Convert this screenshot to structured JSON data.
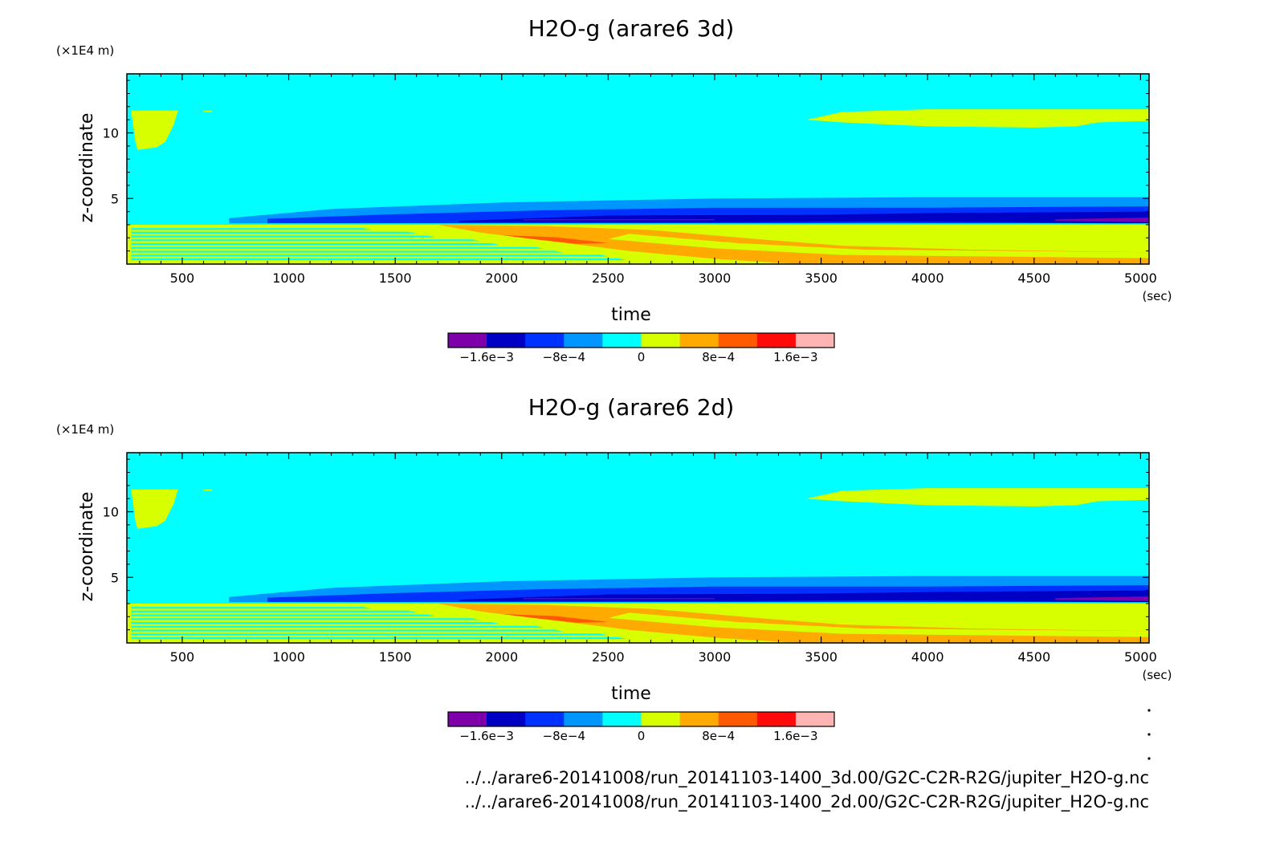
{
  "palette": {
    "c0": "#7d00aa",
    "c1": "#0000c4",
    "c2": "#0032ff",
    "c3": "#0096ff",
    "c4": "#00ffff",
    "c5": "#d7ff00",
    "c6": "#ffaa00",
    "c7": "#ff5a00",
    "c8": "#ff0a0a",
    "c9": "#ffb4b4"
  },
  "chart_data": [
    {
      "type": "heatmap",
      "title": "H2O-g (arare6 3d)",
      "xlabel": "time",
      "ylabel": "z-coordinate",
      "x_unit": "(sec)",
      "y_unit": "(×1E4 m)",
      "xlim": [
        240,
        5040
      ],
      "ylim": [
        0,
        14.5
      ],
      "x_ticks": [
        500,
        1000,
        1500,
        2000,
        2500,
        3000,
        3500,
        4000,
        4500,
        5000
      ],
      "x_tick_labels": [
        "500",
        "1000",
        "1500",
        "2000",
        "2500",
        "3000",
        "3500",
        "4000",
        "4500",
        "5000"
      ],
      "y_ticks": [
        5,
        10
      ],
      "y_tick_labels": [
        "5",
        "10"
      ],
      "colorbar": {
        "levels": [
          -0.002,
          -0.0016,
          -0.0012,
          -0.0008,
          -0.0004,
          0,
          0.0004,
          0.0008,
          0.0012,
          0.0016,
          0.002
        ],
        "tick_values": [
          -0.0016,
          -0.0008,
          0,
          0.0008,
          0.0016
        ],
        "tick_labels": [
          "−1.6e−3",
          "−8e−4",
          "0",
          "8e−4",
          "1.6e−3"
        ]
      },
      "regions": [
        {
          "value_level": "0 to 4e-4",
          "t_range": [
            240,
            480
          ],
          "z_range": [
            8.6,
            11.7
          ],
          "description": "upper-left plume"
        },
        {
          "value_level": "0 to 4e-4",
          "t_range": [
            3430,
            5040
          ],
          "z_range": [
            10.4,
            11.8
          ]
        },
        {
          "value_level": "-4e-4 to 0",
          "t_range": [
            720,
            5040
          ],
          "z_range": [
            3.6,
            5.1
          ]
        },
        {
          "value_level": "-1.2e-3 to -8e-4",
          "t_range": [
            1800,
            5040
          ],
          "z_range": [
            3.1,
            4.2
          ]
        },
        {
          "value_level": "-2e-3 to -1.6e-3",
          "t_range": [
            4600,
            5040
          ],
          "z_range": [
            3.2,
            3.5
          ]
        },
        {
          "value_level": "0 to 4e-4",
          "t_range": [
            240,
            5040
          ],
          "z_range": [
            0,
            3.0
          ]
        },
        {
          "value_level": "4e-4 to 8e-4",
          "t_range": [
            1700,
            5040
          ],
          "z_range": [
            0,
            3.0
          ]
        },
        {
          "value_level": "8e-4 to 1.2e-3",
          "t_range": [
            2000,
            2400
          ],
          "z_range": [
            1.6,
            2.4
          ]
        }
      ]
    },
    {
      "type": "heatmap",
      "title": "H2O-g (arare6 2d)",
      "xlabel": "time",
      "ylabel": "z-coordinate",
      "x_unit": "(sec)",
      "y_unit": "(×1E4 m)",
      "xlim": [
        240,
        5040
      ],
      "ylim": [
        0,
        14.5
      ],
      "x_ticks": [
        500,
        1000,
        1500,
        2000,
        2500,
        3000,
        3500,
        4000,
        4500,
        5000
      ],
      "x_tick_labels": [
        "500",
        "1000",
        "1500",
        "2000",
        "2500",
        "3000",
        "3500",
        "4000",
        "4500",
        "5000"
      ],
      "y_ticks": [
        5,
        10
      ],
      "y_tick_labels": [
        "5",
        "10"
      ],
      "colorbar": {
        "levels": [
          -0.002,
          -0.0016,
          -0.0012,
          -0.0008,
          -0.0004,
          0,
          0.0004,
          0.0008,
          0.0012,
          0.0016,
          0.002
        ],
        "tick_values": [
          -0.0016,
          -0.0008,
          0,
          0.0008,
          0.0016
        ],
        "tick_labels": [
          "−1.6e−3",
          "−8e−4",
          "0",
          "8e−4",
          "1.6e−3"
        ]
      },
      "regions": [
        {
          "value_level": "0 to 4e-4",
          "t_range": [
            240,
            480
          ],
          "z_range": [
            8.6,
            11.7
          ]
        },
        {
          "value_level": "0 to 4e-4",
          "t_range": [
            3430,
            5040
          ],
          "z_range": [
            10.4,
            11.8
          ]
        },
        {
          "value_level": "-4e-4 to 0",
          "t_range": [
            720,
            5040
          ],
          "z_range": [
            3.6,
            5.1
          ]
        },
        {
          "value_level": "-1.2e-3 to -8e-4",
          "t_range": [
            1800,
            5040
          ],
          "z_range": [
            3.1,
            4.2
          ]
        },
        {
          "value_level": "-2e-3 to -1.6e-3",
          "t_range": [
            4600,
            5040
          ],
          "z_range": [
            3.2,
            3.5
          ]
        },
        {
          "value_level": "0 to 4e-4",
          "t_range": [
            240,
            5040
          ],
          "z_range": [
            0,
            3.0
          ]
        },
        {
          "value_level": "4e-4 to 8e-4",
          "t_range": [
            1700,
            5040
          ],
          "z_range": [
            0,
            3.0
          ]
        },
        {
          "value_level": "8e-4 to 1.2e-3",
          "t_range": [
            2000,
            2400
          ],
          "z_range": [
            1.6,
            2.4
          ]
        }
      ]
    }
  ],
  "footer": {
    "source_3d": "../../arare6-20141008/run_20141103-1400_3d.00/G2C-C2R-R2G/jupiter_H2O-g.nc",
    "source_2d": "../../arare6-20141008/run_20141103-1400_2d.00/G2C-C2R-R2G/jupiter_H2O-g.nc"
  }
}
